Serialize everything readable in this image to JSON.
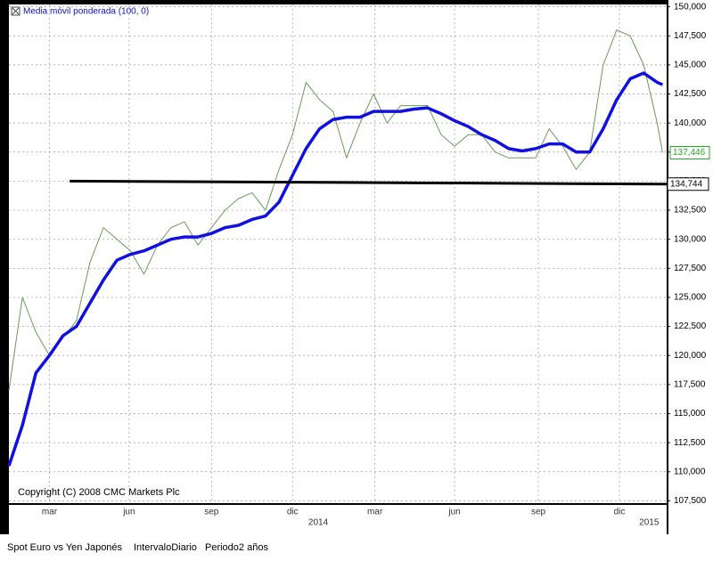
{
  "chart_data": {
    "type": "line",
    "legend": "Media móvil ponderada (100, 0)",
    "copyright": "Copyright (C) 2008 CMC Markets Plc",
    "footer": [
      "Spot Euro vs Yen Japonés",
      "IntervaloDiario",
      "Periodo2 años"
    ],
    "xlim": [
      0,
      24.35
    ],
    "xticks": [
      {
        "value": 1.5,
        "label": "mar"
      },
      {
        "value": 4.45,
        "label": "jun"
      },
      {
        "value": 7.5,
        "label": "sep"
      },
      {
        "value": 10.5,
        "label": "dic"
      },
      {
        "value": 13.55,
        "label": "mar"
      },
      {
        "value": 16.5,
        "label": "jun"
      },
      {
        "value": 19.6,
        "label": "sep"
      },
      {
        "value": 22.6,
        "label": "dic"
      }
    ],
    "year_ticks": [
      {
        "value": 11.45,
        "label": "2014"
      },
      {
        "value": 23.7,
        "label": "2015"
      }
    ],
    "ylim": [
      107.3,
      150.2
    ],
    "yticks": [
      {
        "value": 107.5,
        "label": "107,500"
      },
      {
        "value": 110,
        "label": "110,000"
      },
      {
        "value": 112.5,
        "label": "112,500"
      },
      {
        "value": 115,
        "label": "115,000"
      },
      {
        "value": 117.5,
        "label": "117,500"
      },
      {
        "value": 120,
        "label": "120,000"
      },
      {
        "value": 122.5,
        "label": "122,500"
      },
      {
        "value": 125,
        "label": "125,000"
      },
      {
        "value": 127.5,
        "label": "127,500"
      },
      {
        "value": 130,
        "label": "130,000"
      },
      {
        "value": 132.5,
        "label": "132,500"
      },
      {
        "value": 135,
        "label": "135,000"
      },
      {
        "value": 137.5,
        "label": "137,500"
      },
      {
        "value": 140,
        "label": "140,000"
      },
      {
        "value": 142.5,
        "label": "142,500"
      },
      {
        "value": 145,
        "label": "145,000"
      },
      {
        "value": 147.5,
        "label": "147,500"
      },
      {
        "value": 150,
        "label": "150,000"
      }
    ],
    "grid": true,
    "x": [
      0,
      0.5,
      1,
      1.5,
      2,
      2.5,
      3,
      3.5,
      4,
      4.5,
      5,
      5.5,
      6,
      6.5,
      7,
      7.5,
      8,
      8.5,
      9,
      9.5,
      10,
      10.5,
      11,
      11.5,
      12,
      12.5,
      13,
      13.5,
      14,
      14.5,
      15,
      15.5,
      16,
      16.5,
      17,
      17.5,
      18,
      18.5,
      19,
      19.5,
      20,
      20.5,
      21,
      21.5,
      22,
      22.5,
      23,
      23.5,
      24,
      24.2
    ],
    "series": [
      {
        "name": "Spot Euro vs Yen Japonés",
        "color": "#6a9a5a",
        "width": 1,
        "values": [
          117,
          125,
          122,
          120,
          121.5,
          123,
          128,
          131,
          130,
          129,
          127,
          129.5,
          131,
          131.5,
          129.5,
          131,
          132.5,
          133.5,
          134,
          132.5,
          136,
          139,
          143.5,
          142,
          141,
          137,
          140,
          142.5,
          140,
          141.5,
          141.5,
          141.5,
          139,
          138,
          139,
          139,
          137.5,
          137,
          137,
          137,
          139.5,
          138,
          136,
          137.5,
          145,
          148,
          147.5,
          145,
          140,
          137.446
        ]
      },
      {
        "name": "Media móvil ponderada (100, 0)",
        "color": "#1010e0",
        "width": 3.5,
        "values": [
          110.5,
          114,
          118.5,
          120,
          121.7,
          122.5,
          124.5,
          126.5,
          128.2,
          128.7,
          129,
          129.5,
          130,
          130.2,
          130.2,
          130.5,
          131,
          131.2,
          131.7,
          132,
          133.2,
          135.5,
          137.8,
          139.5,
          140.3,
          140.5,
          140.5,
          141,
          141,
          141,
          141.2,
          141.3,
          140.8,
          140.2,
          139.7,
          139,
          138.5,
          137.8,
          137.6,
          137.8,
          138.2,
          138.2,
          137.5,
          137.5,
          139.5,
          142,
          143.8,
          144.3,
          143.5,
          143.3
        ]
      }
    ],
    "last_price": {
      "value": 137.446,
      "label": "137,446"
    },
    "support_line": {
      "x": [
        2.25,
        24.35
      ],
      "values": [
        135,
        134.744
      ],
      "value_labels": [
        "134,744"
      ]
    }
  }
}
